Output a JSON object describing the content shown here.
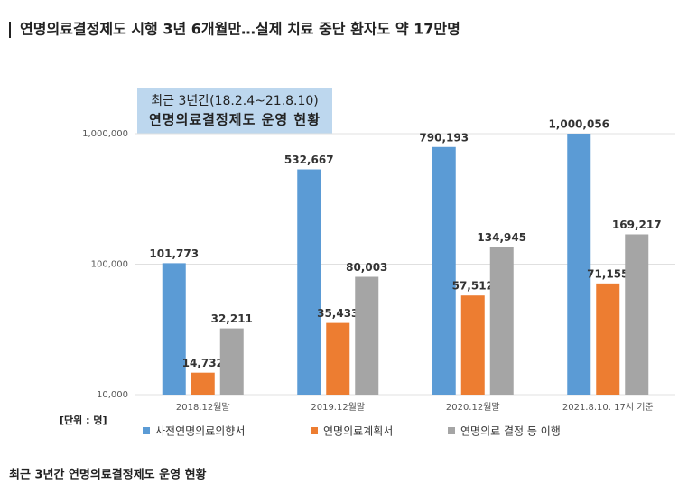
{
  "header": {
    "title": "연명의료결정제도 시행 3년 6개월만…실제 치료 중단 환자도 약 17만명"
  },
  "chart_data": {
    "type": "bar",
    "title": "최근 3년간(18.2.4~21.8.10)",
    "subtitle": "연명의료결정제도 운영 현황",
    "unit_label": "[단위 : 명]",
    "categories": [
      "2018.12월말",
      "2019.12월말",
      "2020.12월말",
      "2021.8.10. 17시 기준"
    ],
    "series": [
      {
        "name": "사전연명의료의향서",
        "color": "#5b9bd5",
        "values": [
          101773,
          532667,
          790193,
          1000056
        ],
        "value_labels": [
          "101,773",
          "532,667",
          "790,193",
          "1,000,056"
        ]
      },
      {
        "name": "연명의료계획서",
        "color": "#ed7d31",
        "values": [
          14732,
          35433,
          57512,
          71155
        ],
        "value_labels": [
          "14,732",
          "35,433",
          "57,512",
          "71,155"
        ]
      },
      {
        "name": "연명의료 결정 등 이행",
        "color": "#a5a5a5",
        "values": [
          32211,
          80003,
          134945,
          169217
        ],
        "value_labels": [
          "32,211",
          "80,003",
          "134,945",
          "169,217"
        ]
      }
    ],
    "ylim": [
      10000,
      1000000
    ],
    "yticks": [
      {
        "value": 10000,
        "label": "10,000"
      },
      {
        "value": 100000,
        "label": "100,000"
      },
      {
        "value": 1000000,
        "label": "1,000,000"
      }
    ],
    "log_scale": true,
    "grid": true,
    "legend": "bottom"
  },
  "caption": "최근 3년간 연명의료결정제도 운영 현황"
}
